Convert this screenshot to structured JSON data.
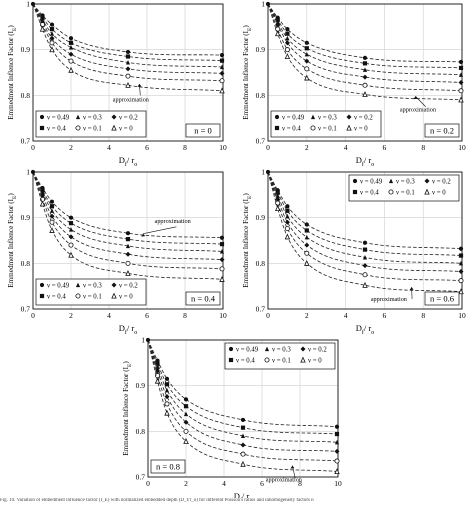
{
  "figure": {
    "caption_fragment": "Fig. 10. Variation of embedment influence factor (I_E) with normalized embedded depth (D_f/r_o) for different Poisson's ratios and inhomogeneity factors n"
  },
  "chart_data": [
    {
      "type": "line",
      "panel_label": "n = 0",
      "xlabel": "D_f / r_o",
      "ylabel": "Emmedment Inflence Factor (I_E)",
      "xlim": [
        0,
        10
      ],
      "ylim": [
        0.7,
        1.0
      ],
      "xticks": [
        0,
        2,
        4,
        6,
        8,
        10
      ],
      "yticks": [
        0.7,
        0.8,
        0.9,
        1.0
      ],
      "x": [
        0,
        0.5,
        1,
        2,
        5,
        10
      ],
      "series": [
        {
          "name": "ν = 0.49",
          "marker": "circle-filled",
          "values": [
            1.0,
            0.975,
            0.955,
            0.925,
            0.895,
            0.888
          ]
        },
        {
          "name": "ν = 0.4",
          "marker": "square-filled",
          "values": [
            1.0,
            0.97,
            0.945,
            0.915,
            0.885,
            0.876
          ]
        },
        {
          "name": "ν = 0.3",
          "marker": "triangle-filled",
          "values": [
            1.0,
            0.965,
            0.935,
            0.905,
            0.872,
            0.862
          ]
        },
        {
          "name": "ν = 0.2",
          "marker": "diamond-filled",
          "values": [
            1.0,
            0.96,
            0.925,
            0.89,
            0.858,
            0.848
          ]
        },
        {
          "name": "ν = 0.1",
          "marker": "circle-open",
          "values": [
            1.0,
            0.955,
            0.915,
            0.875,
            0.842,
            0.832
          ]
        },
        {
          "name": "ν = 0",
          "marker": "triangle-open",
          "values": [
            1.0,
            0.945,
            0.9,
            0.855,
            0.822,
            0.81
          ]
        }
      ],
      "annotation": "approximation",
      "legend": "bottom-left"
    },
    {
      "type": "line",
      "panel_label": "n = 0.2",
      "xlabel": "D_f / r_o",
      "ylabel": "Emmedment Inflence Factor (I_E)",
      "xlim": [
        0,
        10
      ],
      "ylim": [
        0.7,
        1.0
      ],
      "xticks": [
        0,
        2,
        4,
        6,
        8,
        10
      ],
      "yticks": [
        0.7,
        0.8,
        0.9,
        1.0
      ],
      "x": [
        0,
        0.5,
        1,
        2,
        5,
        10
      ],
      "series": [
        {
          "name": "ν = 0.49",
          "marker": "circle-filled",
          "values": [
            1.0,
            0.97,
            0.945,
            0.915,
            0.882,
            0.873
          ]
        },
        {
          "name": "ν = 0.4",
          "marker": "square-filled",
          "values": [
            1.0,
            0.965,
            0.935,
            0.903,
            0.87,
            0.86
          ]
        },
        {
          "name": "ν = 0.3",
          "marker": "triangle-filled",
          "values": [
            1.0,
            0.96,
            0.925,
            0.89,
            0.856,
            0.845
          ]
        },
        {
          "name": "ν = 0.2",
          "marker": "diamond-filled",
          "values": [
            1.0,
            0.955,
            0.915,
            0.875,
            0.84,
            0.828
          ]
        },
        {
          "name": "ν = 0.1",
          "marker": "circle-open",
          "values": [
            1.0,
            0.945,
            0.9,
            0.858,
            0.822,
            0.81
          ]
        },
        {
          "name": "ν = 0",
          "marker": "triangle-open",
          "values": [
            1.0,
            0.935,
            0.885,
            0.838,
            0.802,
            0.79
          ]
        }
      ],
      "annotation": "approximation",
      "legend": "bottom-left"
    },
    {
      "type": "line",
      "panel_label": "n = 0.4",
      "xlabel": "D_f / r_o",
      "ylabel": "Emmedment Inflence Factor (I_E)",
      "xlim": [
        0,
        10
      ],
      "ylim": [
        0.7,
        1.0
      ],
      "xticks": [
        0,
        2,
        4,
        6,
        8,
        10
      ],
      "yticks": [
        0.7,
        0.8,
        0.9,
        1.0
      ],
      "x": [
        0,
        0.5,
        1,
        2,
        5,
        10
      ],
      "series": [
        {
          "name": "ν = 0.49",
          "marker": "circle-filled",
          "values": [
            1.0,
            0.965,
            0.935,
            0.9,
            0.866,
            0.856
          ]
        },
        {
          "name": "ν = 0.4",
          "marker": "square-filled",
          "values": [
            1.0,
            0.96,
            0.925,
            0.888,
            0.853,
            0.842
          ]
        },
        {
          "name": "ν = 0.3",
          "marker": "triangle-filled",
          "values": [
            1.0,
            0.955,
            0.915,
            0.874,
            0.838,
            0.826
          ]
        },
        {
          "name": "ν = 0.2",
          "marker": "diamond-filled",
          "values": [
            1.0,
            0.948,
            0.903,
            0.858,
            0.82,
            0.808
          ]
        },
        {
          "name": "ν = 0.1",
          "marker": "circle-open",
          "values": [
            1.0,
            0.94,
            0.89,
            0.84,
            0.8,
            0.788
          ]
        },
        {
          "name": "ν = 0",
          "marker": "triangle-open",
          "values": [
            1.0,
            0.93,
            0.872,
            0.818,
            0.778,
            0.765
          ]
        }
      ],
      "annotation": "approximation",
      "legend": "bottom-left"
    },
    {
      "type": "line",
      "panel_label": "n = 0.6",
      "xlabel": "D_f / r_o",
      "ylabel": "Emmedment Inflence Factor (I_E)",
      "xlim": [
        0,
        10
      ],
      "ylim": [
        0.7,
        1.0
      ],
      "xticks": [
        0,
        2,
        4,
        6,
        8,
        10
      ],
      "yticks": [
        0.7,
        0.8,
        0.9,
        1.0
      ],
      "x": [
        0,
        0.5,
        1,
        2,
        5,
        10
      ],
      "series": [
        {
          "name": "ν = 0.49",
          "marker": "circle-filled",
          "values": [
            1.0,
            0.96,
            0.925,
            0.885,
            0.845,
            0.832
          ]
        },
        {
          "name": "ν = 0.4",
          "marker": "square-filled",
          "values": [
            1.0,
            0.955,
            0.915,
            0.872,
            0.83,
            0.817
          ]
        },
        {
          "name": "ν = 0.3",
          "marker": "triangle-filled",
          "values": [
            1.0,
            0.948,
            0.903,
            0.857,
            0.813,
            0.8
          ]
        },
        {
          "name": "ν = 0.2",
          "marker": "diamond-filled",
          "values": [
            1.0,
            0.94,
            0.89,
            0.84,
            0.795,
            0.782
          ]
        },
        {
          "name": "ν = 0.1",
          "marker": "circle-open",
          "values": [
            1.0,
            0.932,
            0.876,
            0.822,
            0.775,
            0.762
          ]
        },
        {
          "name": "ν = 0",
          "marker": "triangle-open",
          "values": [
            1.0,
            0.92,
            0.858,
            0.8,
            0.752,
            0.738
          ]
        }
      ],
      "annotation": "approximation",
      "legend": "top-right"
    },
    {
      "type": "line",
      "panel_label": "n = 0.8",
      "xlabel": "D_f / r_o",
      "ylabel": "Emmedment Inflence Factor (I_E)",
      "xlim": [
        0,
        10
      ],
      "ylim": [
        0.7,
        1.0
      ],
      "xticks": [
        0,
        2,
        4,
        6,
        8,
        10
      ],
      "yticks": [
        0.7,
        0.8,
        0.9,
        1.0
      ],
      "x": [
        0,
        0.5,
        1,
        2,
        5,
        10
      ],
      "series": [
        {
          "name": "ν = 0.49",
          "marker": "circle-filled",
          "values": [
            1.0,
            0.955,
            0.915,
            0.87,
            0.825,
            0.81
          ]
        },
        {
          "name": "ν = 0.4",
          "marker": "square-filled",
          "values": [
            1.0,
            0.948,
            0.903,
            0.855,
            0.808,
            0.794
          ]
        },
        {
          "name": "ν = 0.3",
          "marker": "triangle-filled",
          "values": [
            1.0,
            0.94,
            0.89,
            0.838,
            0.79,
            0.776
          ]
        },
        {
          "name": "ν = 0.2",
          "marker": "diamond-filled",
          "values": [
            1.0,
            0.932,
            0.876,
            0.82,
            0.77,
            0.756
          ]
        },
        {
          "name": "ν = 0.1",
          "marker": "circle-open",
          "values": [
            1.0,
            0.922,
            0.86,
            0.8,
            0.75,
            0.735
          ]
        },
        {
          "name": "ν = 0",
          "marker": "triangle-open",
          "values": [
            1.0,
            0.91,
            0.84,
            0.778,
            0.728,
            0.712
          ]
        }
      ],
      "annotation": "approximation",
      "legend": "top-right"
    }
  ]
}
